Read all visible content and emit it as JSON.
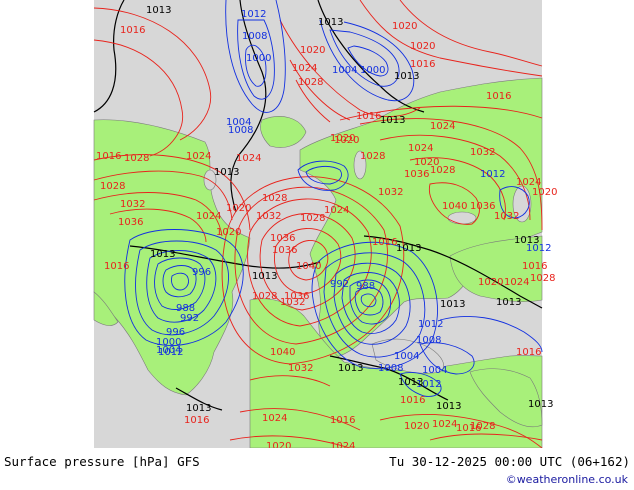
{
  "footer": {
    "title": "Surface pressure [hPa] GFS",
    "valid_time": "Tu 30-12-2025 00:00 UTC (06+162)",
    "credit": "©weatheronline.co.uk"
  },
  "colors": {
    "land": "#a8f07a",
    "sea": "#d7d7d7",
    "high_isobar": "#e8231c",
    "low_isobar": "#1230e0",
    "reference_isobar": "#000000",
    "coastline": "#7a7a7a"
  },
  "isobar_labels": [
    {
      "text": "1013",
      "kind": "ref"
    },
    {
      "text": "1012",
      "kind": "low"
    },
    {
      "text": "1013",
      "kind": "ref"
    },
    {
      "text": "1016",
      "kind": "high"
    },
    {
      "text": "1020",
      "kind": "high"
    },
    {
      "text": "1008",
      "kind": "low"
    },
    {
      "text": "1000",
      "kind": "low"
    },
    {
      "text": "1020",
      "kind": "high"
    },
    {
      "text": "1024",
      "kind": "high"
    },
    {
      "text": "1028",
      "kind": "high"
    },
    {
      "text": "1004",
      "kind": "low"
    },
    {
      "text": "1000",
      "kind": "low"
    },
    {
      "text": "1013",
      "kind": "ref"
    },
    {
      "text": "1016",
      "kind": "high"
    },
    {
      "text": "1020",
      "kind": "high"
    },
    {
      "text": "1016",
      "kind": "high"
    },
    {
      "text": "1004",
      "kind": "low"
    },
    {
      "text": "1008",
      "kind": "low"
    },
    {
      "text": "1013",
      "kind": "ref"
    },
    {
      "text": "1016",
      "kind": "high"
    },
    {
      "text": "1020",
      "kind": "high"
    },
    {
      "text": "1024",
      "kind": "high"
    },
    {
      "text": "1028",
      "kind": "high"
    },
    {
      "text": "1016",
      "kind": "high"
    },
    {
      "text": "1028",
      "kind": "high"
    },
    {
      "text": "1024",
      "kind": "high"
    },
    {
      "text": "1013",
      "kind": "ref"
    },
    {
      "text": "1028",
      "kind": "high"
    },
    {
      "text": "1032",
      "kind": "high"
    },
    {
      "text": "1036",
      "kind": "high"
    },
    {
      "text": "1024",
      "kind": "high"
    },
    {
      "text": "1020",
      "kind": "high"
    },
    {
      "text": "1032",
      "kind": "high"
    },
    {
      "text": "1028",
      "kind": "high"
    },
    {
      "text": "1024",
      "kind": "high"
    },
    {
      "text": "1036",
      "kind": "high"
    },
    {
      "text": "1032",
      "kind": "high"
    },
    {
      "text": "1028",
      "kind": "high"
    },
    {
      "text": "1020",
      "kind": "high"
    },
    {
      "text": "1024",
      "kind": "high"
    },
    {
      "text": "1032",
      "kind": "high"
    },
    {
      "text": "1013",
      "kind": "ref"
    },
    {
      "text": "1016",
      "kind": "high"
    },
    {
      "text": "1020",
      "kind": "high"
    },
    {
      "text": "1036",
      "kind": "high"
    },
    {
      "text": "1040",
      "kind": "high"
    },
    {
      "text": "1013",
      "kind": "ref"
    },
    {
      "text": "1028",
      "kind": "high"
    },
    {
      "text": "1032",
      "kind": "high"
    },
    {
      "text": "1036",
      "kind": "high"
    },
    {
      "text": "1028",
      "kind": "high"
    },
    {
      "text": "1024",
      "kind": "high"
    },
    {
      "text": "1020",
      "kind": "high"
    },
    {
      "text": "1016",
      "kind": "high"
    },
    {
      "text": "996",
      "kind": "low"
    },
    {
      "text": "988",
      "kind": "low"
    },
    {
      "text": "992",
      "kind": "low"
    },
    {
      "text": "996",
      "kind": "low"
    },
    {
      "text": "1000",
      "kind": "low"
    },
    {
      "text": "1004",
      "kind": "low"
    },
    {
      "text": "1012",
      "kind": "low"
    },
    {
      "text": "1013",
      "kind": "ref"
    },
    {
      "text": "1040",
      "kind": "high"
    },
    {
      "text": "1032",
      "kind": "high"
    },
    {
      "text": "1036",
      "kind": "high"
    },
    {
      "text": "1016",
      "kind": "high"
    },
    {
      "text": "1024",
      "kind": "high"
    },
    {
      "text": "1013",
      "kind": "ref"
    },
    {
      "text": "1016",
      "kind": "high"
    },
    {
      "text": "1020",
      "kind": "high"
    },
    {
      "text": "1024",
      "kind": "high"
    },
    {
      "text": "992",
      "kind": "low"
    },
    {
      "text": "988",
      "kind": "low"
    },
    {
      "text": "1013",
      "kind": "ref"
    },
    {
      "text": "1012",
      "kind": "low"
    },
    {
      "text": "1008",
      "kind": "low"
    },
    {
      "text": "1004",
      "kind": "low"
    },
    {
      "text": "1013",
      "kind": "ref"
    },
    {
      "text": "1008",
      "kind": "low"
    },
    {
      "text": "1004",
      "kind": "low"
    },
    {
      "text": "1012",
      "kind": "low"
    },
    {
      "text": "1013",
      "kind": "ref"
    },
    {
      "text": "1016",
      "kind": "high"
    },
    {
      "text": "1020",
      "kind": "high"
    },
    {
      "text": "1024",
      "kind": "high"
    },
    {
      "text": "1028",
      "kind": "high"
    },
    {
      "text": "1013",
      "kind": "ref"
    },
    {
      "text": "1016",
      "kind": "high"
    },
    {
      "text": "1012",
      "kind": "low"
    },
    {
      "text": "1013",
      "kind": "ref"
    },
    {
      "text": "1012",
      "kind": "low"
    },
    {
      "text": "1016",
      "kind": "high"
    },
    {
      "text": "1020",
      "kind": "high"
    },
    {
      "text": "1024",
      "kind": "high"
    },
    {
      "text": "1028",
      "kind": "high"
    },
    {
      "text": "1032",
      "kind": "high"
    },
    {
      "text": "1036",
      "kind": "high"
    },
    {
      "text": "1040",
      "kind": "high"
    },
    {
      "text": "1013",
      "kind": "ref"
    },
    {
      "text": "1024",
      "kind": "high"
    },
    {
      "text": "1020",
      "kind": "high"
    },
    {
      "text": "1016",
      "kind": "high"
    },
    {
      "text": "1013",
      "kind": "ref"
    },
    {
      "text": "1013",
      "kind": "ref"
    }
  ]
}
